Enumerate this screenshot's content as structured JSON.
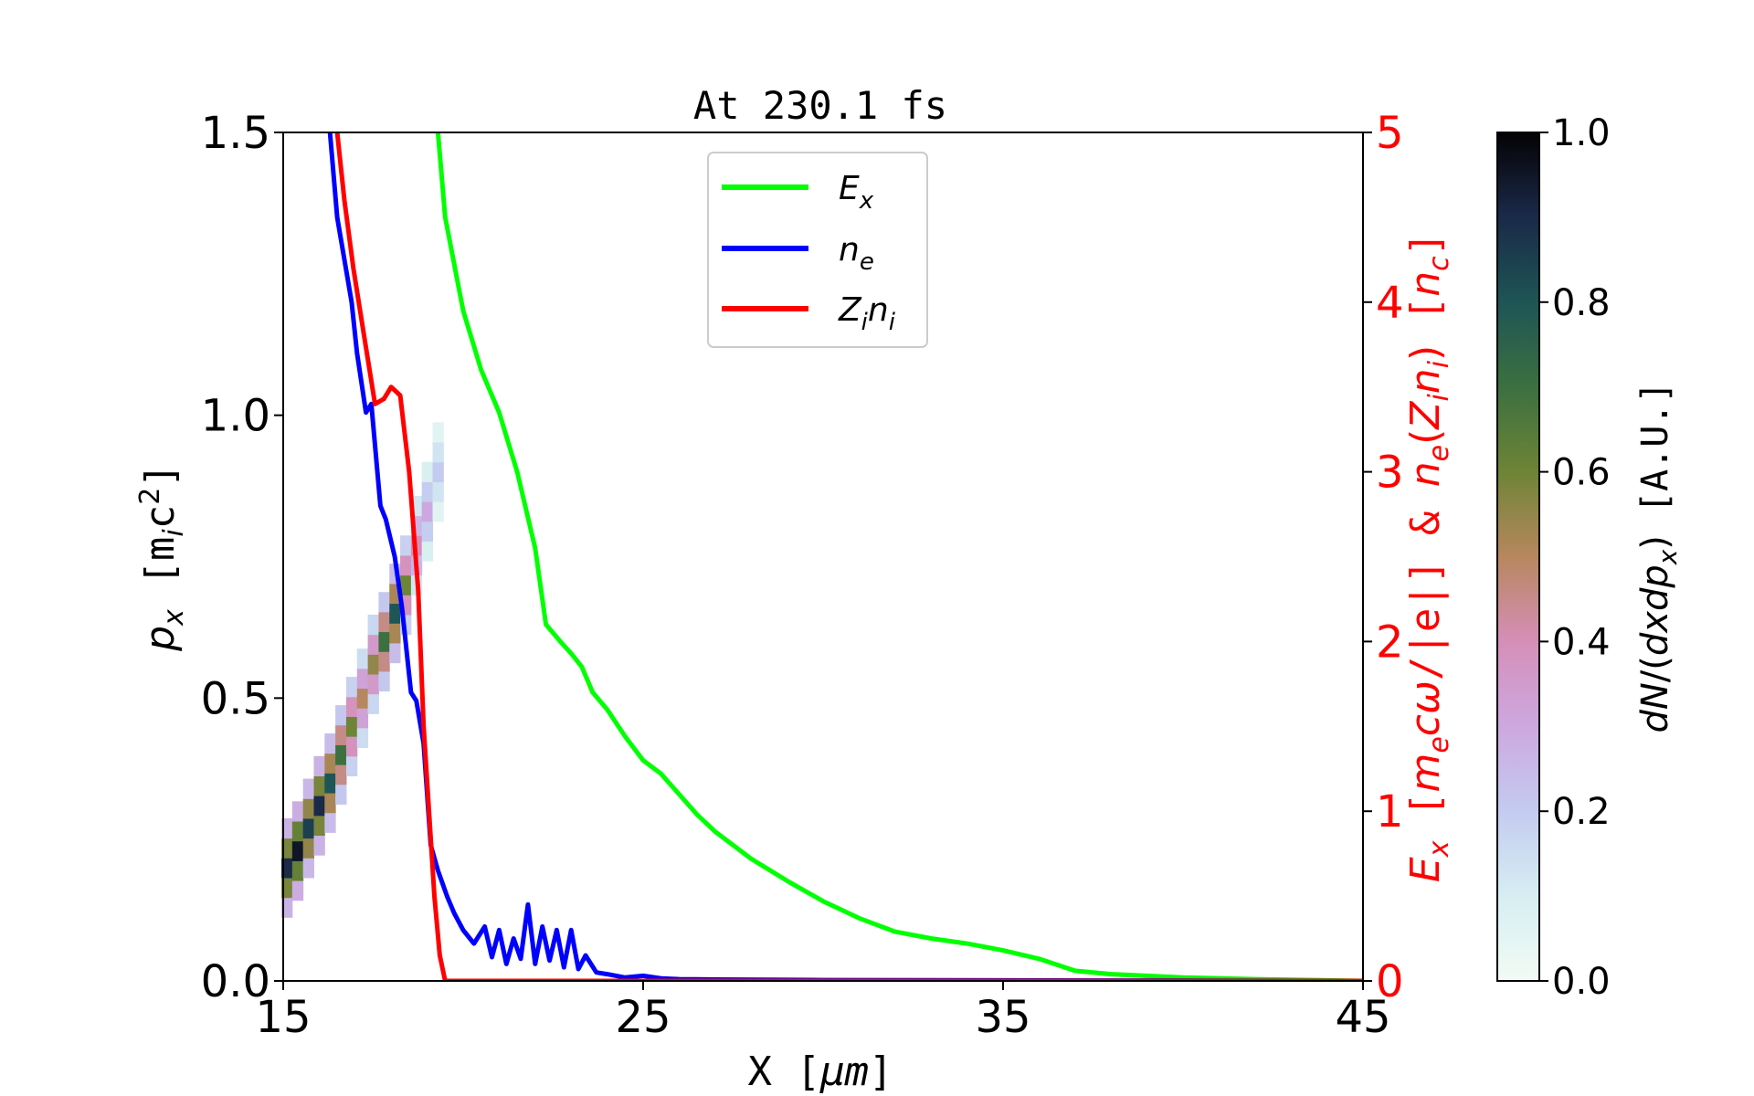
{
  "chart_data": {
    "type": "line",
    "title": "At 230.1 fs",
    "xlabel": "X [μm]",
    "ylabel_left": "p_x [m_i c^2]",
    "ylabel_right": "E_x [m_e c ω/|e|] & n_e(Z_i n_i) [n_c]",
    "colorbar_label": "dN/(dx dp_x) [A.U.]",
    "xlim": [
      15,
      45
    ],
    "ylim_left": [
      0,
      1.5
    ],
    "ylim_right": [
      0,
      5
    ],
    "clim": [
      0,
      1
    ],
    "xticks": [
      "15",
      "25",
      "35",
      "45"
    ],
    "yticks_left": [
      "0.0",
      "0.5",
      "1.0",
      "1.5"
    ],
    "yticks_right": [
      "0",
      "1",
      "2",
      "3",
      "4",
      "5"
    ],
    "colorbar_ticks": [
      "0.0",
      "0.2",
      "0.4",
      "0.6",
      "0.8",
      "1.0"
    ],
    "grid": false,
    "legend_position": "top-center",
    "series": [
      {
        "name": "E_x",
        "axis": "right",
        "color": "#00ff00",
        "x": [
          19.3,
          19.5,
          20.0,
          20.5,
          21.0,
          21.5,
          22.0,
          22.3,
          22.7,
          23.0,
          23.3,
          23.6,
          24.0,
          24.5,
          25.0,
          25.5,
          26.0,
          26.5,
          27.0,
          28.0,
          29.0,
          30.0,
          31.0,
          32.0,
          33.0,
          34.0,
          35.0,
          36.0,
          37.0,
          38.0,
          40.0,
          42.0,
          45.0
        ],
        "y": [
          5.0,
          4.5,
          3.95,
          3.6,
          3.35,
          3.0,
          2.55,
          2.1,
          2.0,
          1.93,
          1.85,
          1.7,
          1.6,
          1.44,
          1.3,
          1.22,
          1.1,
          0.98,
          0.88,
          0.72,
          0.59,
          0.47,
          0.37,
          0.29,
          0.25,
          0.22,
          0.18,
          0.13,
          0.06,
          0.04,
          0.02,
          0.01,
          0.0
        ]
      },
      {
        "name": "n_e",
        "axis": "right",
        "color": "#0000ff",
        "x": [
          16.3,
          16.5,
          16.9,
          17.05,
          17.3,
          17.45,
          17.7,
          17.85,
          18.1,
          18.3,
          18.55,
          18.7,
          18.9,
          19.1,
          19.3,
          19.55,
          19.75,
          20.0,
          20.3,
          20.6,
          20.8,
          21.0,
          21.2,
          21.4,
          21.6,
          21.8,
          22.0,
          22.2,
          22.4,
          22.6,
          22.8,
          23.0,
          23.2,
          23.4,
          23.7,
          24.0,
          24.5,
          25.0,
          25.5,
          26.0,
          27.0,
          30.0,
          35.0,
          45.0
        ],
        "y": [
          5.0,
          4.5,
          4.0,
          3.7,
          3.35,
          3.4,
          2.8,
          2.72,
          2.5,
          2.2,
          1.7,
          1.65,
          1.4,
          0.8,
          0.65,
          0.5,
          0.4,
          0.3,
          0.22,
          0.32,
          0.14,
          0.3,
          0.1,
          0.25,
          0.13,
          0.45,
          0.1,
          0.32,
          0.12,
          0.3,
          0.08,
          0.3,
          0.07,
          0.15,
          0.05,
          0.04,
          0.02,
          0.03,
          0.015,
          0.01,
          0.008,
          0.005,
          0.003,
          0.0
        ]
      },
      {
        "name": "Z_i n_i",
        "axis": "right",
        "color": "#ff0000",
        "x": [
          16.5,
          16.7,
          16.95,
          17.25,
          17.55,
          17.8,
          18.0,
          18.25,
          18.5,
          18.75,
          18.9,
          19.05,
          19.2,
          19.35,
          19.5,
          20.0,
          25.0,
          45.0
        ],
        "y": [
          5.0,
          4.6,
          4.2,
          3.8,
          3.4,
          3.43,
          3.5,
          3.45,
          3.0,
          2.3,
          1.5,
          1.0,
          0.5,
          0.15,
          0.0,
          0.0,
          0.0,
          0.0
        ]
      }
    ],
    "heatmap": {
      "description": "ion phase space density",
      "x": [
        15.1,
        15.4,
        15.7,
        16.0,
        16.3,
        16.6,
        16.9,
        17.2,
        17.5,
        17.8,
        18.1,
        18.4,
        18.7,
        19.0,
        19.3
      ],
      "y": [
        0.2,
        0.23,
        0.27,
        0.31,
        0.35,
        0.4,
        0.45,
        0.5,
        0.56,
        0.6,
        0.65,
        0.7,
        0.77,
        0.83,
        0.9
      ],
      "intensity": [
        0.9,
        0.95,
        0.85,
        0.9,
        0.8,
        0.7,
        0.6,
        0.5,
        0.55,
        0.7,
        0.8,
        0.6,
        0.4,
        0.3,
        0.2
      ]
    }
  }
}
